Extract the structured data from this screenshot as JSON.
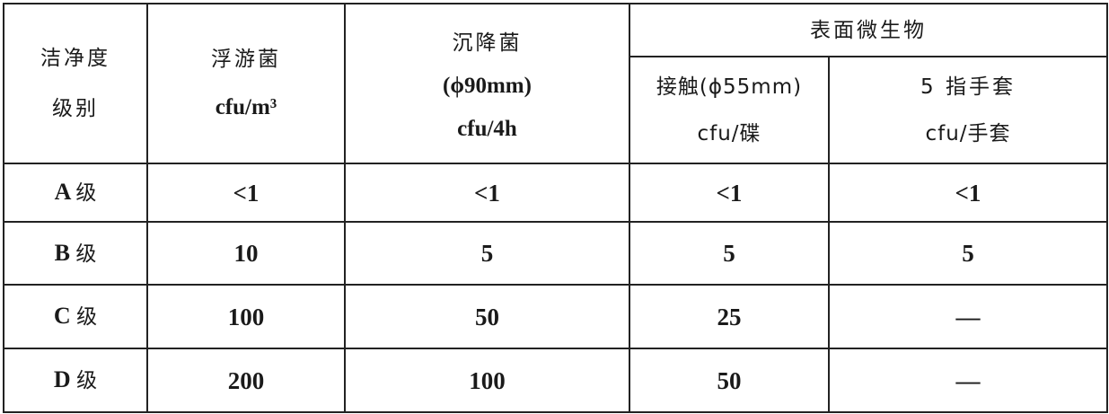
{
  "table": {
    "header": {
      "level": [
        "洁净度",
        "级别"
      ],
      "airborne": [
        "浮游菌",
        "cfu/m³"
      ],
      "settling": [
        "沉降菌",
        "(ϕ90mm)",
        "cfu/4h"
      ],
      "surface_group": "表面微生物",
      "contact": [
        "接触(ϕ55mm)",
        "cfu/碟"
      ],
      "glove": [
        "5 指手套",
        "cfu/手套"
      ]
    },
    "rows": [
      {
        "level_letter": "A",
        "level_suffix": "级",
        "airborne": "<1",
        "settling": "<1",
        "contact": "<1",
        "glove": "<1"
      },
      {
        "level_letter": "B",
        "level_suffix": "级",
        "airborne": "10",
        "settling": "5",
        "contact": "5",
        "glove": "5"
      },
      {
        "level_letter": "C",
        "level_suffix": "级",
        "airborne": "100",
        "settling": "50",
        "contact": "25",
        "glove": "—"
      },
      {
        "level_letter": "D",
        "level_suffix": "级",
        "airborne": "200",
        "settling": "100",
        "contact": "50",
        "glove": "—"
      }
    ]
  }
}
